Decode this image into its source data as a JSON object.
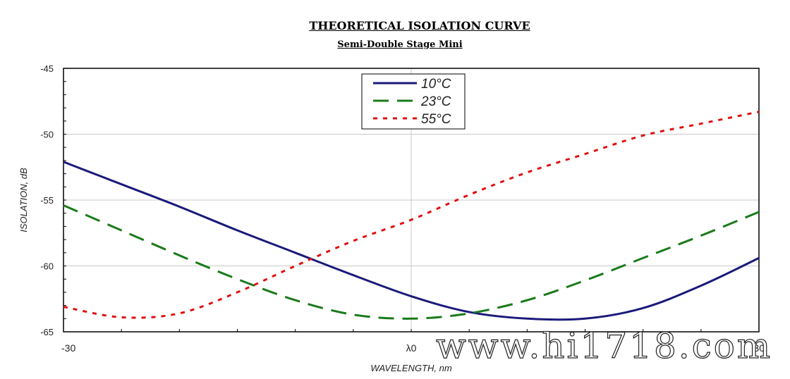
{
  "chart_data": {
    "type": "line",
    "title": "THEORETICAL ISOLATION CURVE",
    "subtitle": "Semi-Double Stage Mini",
    "xlabel": "WAVELENGTH, nm",
    "ylabel": "ISOLATION, dB",
    "xlim": [
      -30,
      30
    ],
    "ylim": [
      -65,
      -45
    ],
    "x_ticks": [
      {
        "value": -30,
        "label": "-30"
      },
      {
        "value": 0,
        "label": "λ0"
      },
      {
        "value": 30,
        "label": "30"
      }
    ],
    "y_ticks": [
      -45,
      -50,
      -55,
      -60,
      -65
    ],
    "grid": true,
    "legend_position": "top-center",
    "series": [
      {
        "name": "10°C",
        "color": "#1a1a7a",
        "style": "solid",
        "x": [
          -30,
          -25,
          -20,
          -15,
          -10,
          -5,
          0,
          5,
          10,
          15,
          20,
          25,
          30
        ],
        "y": [
          -52.1,
          -53.8,
          -55.5,
          -57.3,
          -59.0,
          -60.7,
          -62.3,
          -63.5,
          -64.0,
          -64.0,
          -63.2,
          -61.5,
          -59.4
        ]
      },
      {
        "name": "23°C",
        "color": "#1a7a1a",
        "style": "dashed",
        "x": [
          -30,
          -25,
          -20,
          -15,
          -10,
          -5,
          0,
          5,
          10,
          15,
          20,
          25,
          30
        ],
        "y": [
          -55.4,
          -57.3,
          -59.2,
          -61.0,
          -62.6,
          -63.7,
          -64.0,
          -63.6,
          -62.6,
          -61.1,
          -59.4,
          -57.7,
          -55.9
        ]
      },
      {
        "name": "55°C",
        "color": "#e01010",
        "style": "dotted",
        "x": [
          -30,
          -25,
          -20,
          -15,
          -10,
          -5,
          0,
          5,
          10,
          15,
          20,
          25,
          30
        ],
        "y": [
          -63.1,
          -63.9,
          -63.6,
          -62.0,
          -60.0,
          -58.1,
          -56.5,
          -54.6,
          -52.9,
          -51.5,
          -50.1,
          -49.2,
          -48.3
        ]
      }
    ]
  },
  "watermark": "www.hi1718.com"
}
